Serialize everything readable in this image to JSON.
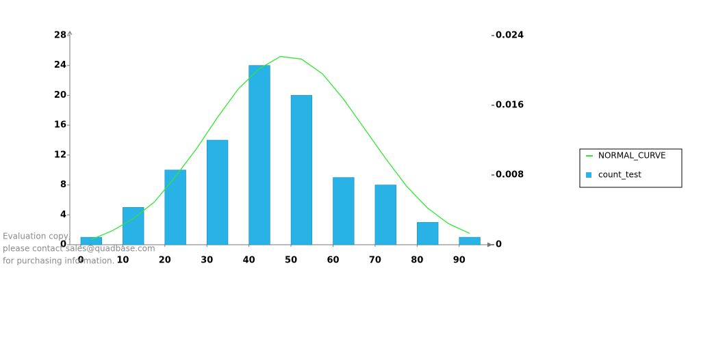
{
  "chart_data": {
    "type": "bar",
    "xlim": [
      -2.6,
      97.2
    ],
    "xticks": [
      0,
      10,
      20,
      30,
      40,
      50,
      60,
      70,
      80,
      90
    ],
    "ylim": [
      0,
      28
    ],
    "yticks": [
      0,
      4,
      8,
      12,
      16,
      20,
      24,
      28
    ],
    "y2lim": [
      0,
      0.024
    ],
    "y2ticks": [
      0,
      0.008,
      0.016,
      0.024
    ],
    "series": [
      {
        "name": "NORMAL_CURVE",
        "type": "line",
        "axis": "y2",
        "color": "#33e633",
        "x": [
          2.5,
          7.5,
          12.5,
          17.5,
          22.5,
          27.5,
          32.5,
          37.5,
          42.5,
          47.5,
          52.5,
          57.5,
          62.5,
          67.5,
          72.5,
          77.5,
          82.5,
          87.5,
          92.5
        ],
        "values": [
          0.0006,
          0.0016,
          0.003,
          0.0049,
          0.0078,
          0.011,
          0.0146,
          0.0179,
          0.0202,
          0.0216,
          0.0213,
          0.0196,
          0.0167,
          0.0133,
          0.0099,
          0.0067,
          0.0042,
          0.0024,
          0.0013
        ]
      },
      {
        "name": "count_test",
        "type": "bar",
        "color": "#29b2e6",
        "x": [
          0,
          10,
          20,
          30,
          40,
          50,
          60,
          70,
          80,
          90
        ],
        "values": [
          1,
          5,
          10,
          14,
          24,
          20,
          9,
          8,
          3,
          1
        ]
      }
    ],
    "annotations": [
      "Evaluation copy,",
      "please contact sales@quadbase.com",
      "for purchasing information."
    ]
  }
}
